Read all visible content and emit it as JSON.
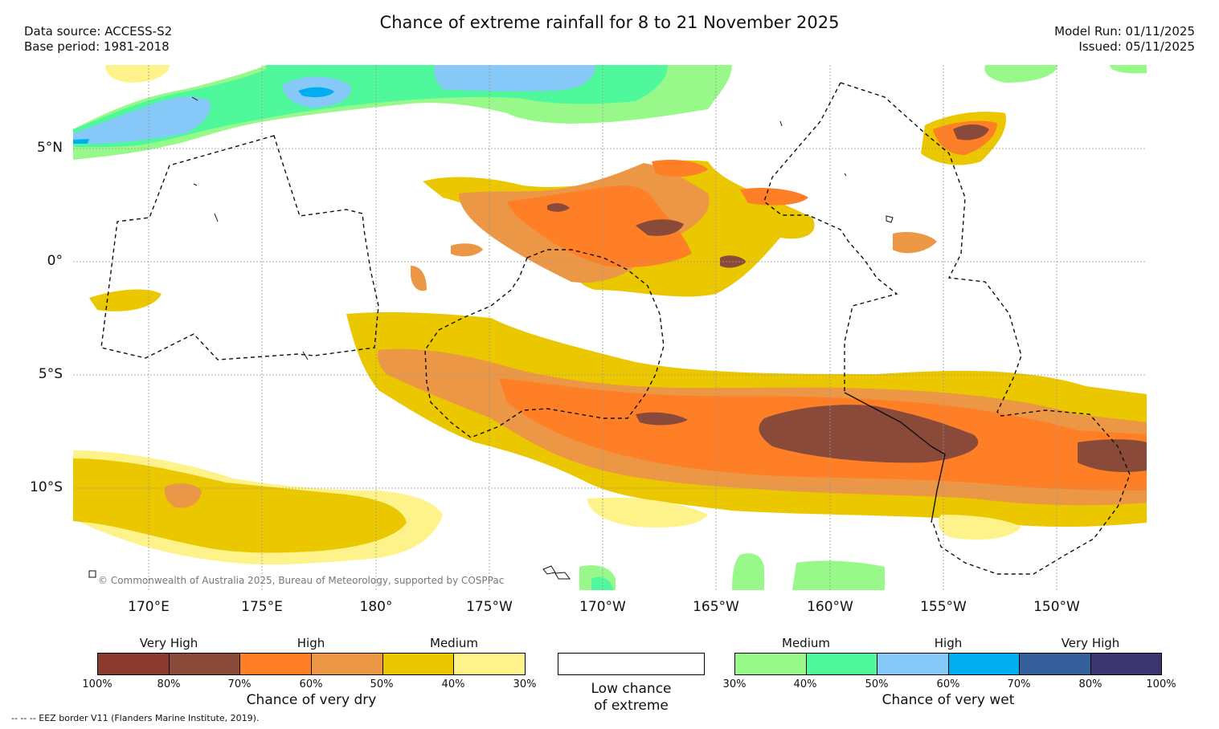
{
  "title": "Chance of extreme rainfall for 8 to 21 November 2025",
  "data_source": "Data source: ACCESS-S2",
  "base_period": "Base period: 1981-2018",
  "model_run": "Model Run: 01/11/2025",
  "issued": "Issued: 05/11/2025",
  "lat_labels": [
    "5°N",
    "0°",
    "5°S",
    "10°S"
  ],
  "lon_labels": [
    "170°E",
    "175°E",
    "180°",
    "175°W",
    "170°W",
    "165°W",
    "160°W",
    "155°W",
    "150°W"
  ],
  "copyright": "© Commonwealth of Australia 2025, Bureau of Meteorology, supported by COSPPac",
  "dry_legend": {
    "categories": [
      "Very High",
      "High",
      "Medium"
    ],
    "colors": [
      "#8b3a2f",
      "#8a4a3a",
      "#ff7f27",
      "#eb9745",
      "#ebc700",
      "#fdf38a"
    ],
    "ticks": [
      "100%",
      "80%",
      "70%",
      "60%",
      "50%",
      "40%",
      "30%"
    ],
    "caption": "Chance of very dry"
  },
  "low_legend": {
    "line1": "Low chance",
    "line2": "of extreme"
  },
  "wet_legend": {
    "categories": [
      "Medium",
      "High",
      "Very High"
    ],
    "colors": [
      "#98f98a",
      "#50f89c",
      "#86c8f8",
      "#00aeef",
      "#355f9b",
      "#3b376e"
    ],
    "ticks": [
      "30%",
      "40%",
      "50%",
      "60%",
      "70%",
      "80%",
      "100%"
    ],
    "caption": "Chance of very wet"
  },
  "eez_note": "--  --  -- EEZ border V11 (Flanders Marine Institute, 2019)."
}
